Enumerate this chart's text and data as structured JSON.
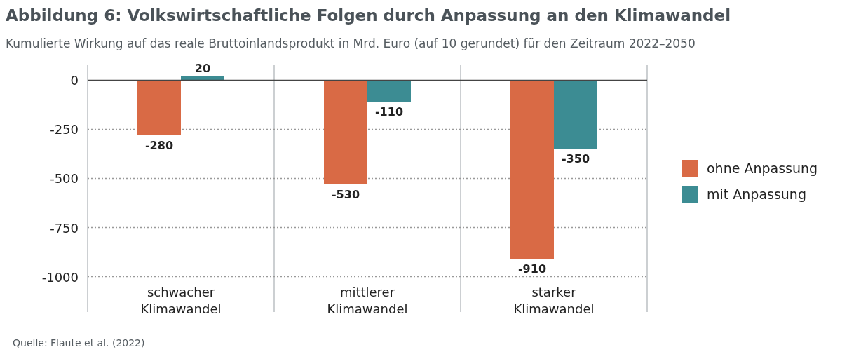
{
  "chart_data": {
    "type": "bar",
    "title": "Abbildung 6: Volkswirtschaftliche Folgen durch Anpassung an den Klimawandel",
    "subtitle": "Kumulierte Wirkung auf das reale Bruttoinlandsprodukt in Mrd. Euro (auf 10 gerundet) für den Zeitraum 2022–2050",
    "categories": [
      "schwacher Klimawandel",
      "mittlerer Klimawandel",
      "starker Klimawandel"
    ],
    "series": [
      {
        "name": "ohne Anpassung",
        "color": "#d96a45",
        "values": [
          -280,
          -530,
          -910
        ]
      },
      {
        "name": "mit Anpassung",
        "color": "#3c8c93",
        "values": [
          20,
          -110,
          -350
        ]
      }
    ],
    "ylim": [
      -1180,
      80
    ],
    "yticks": [
      0,
      -250,
      -500,
      -750,
      -1000
    ],
    "grid": "y",
    "legend": "right",
    "data_labels": true,
    "annotations": [
      "Quelle: Flaute et al. (2022)"
    ]
  }
}
